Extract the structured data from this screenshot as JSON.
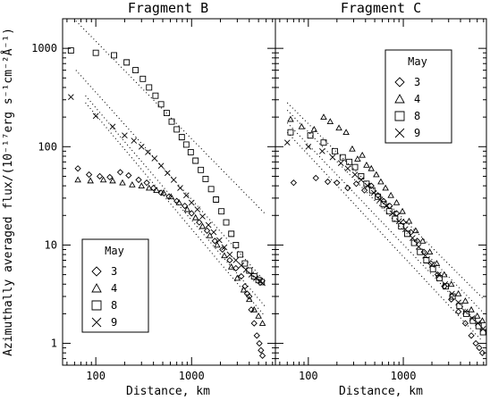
{
  "chart_data": {
    "type": "scatter",
    "ylabel": "Azimuthally averaged flux/(10⁻¹⁷erg s⁻¹cm⁻²Å⁻¹)",
    "xlabel": "Distance, km",
    "x_scale": "log",
    "y_scale": "log",
    "xlim": [
      45,
      7500
    ],
    "ylim": [
      0.6,
      2000
    ],
    "x_ticks": [
      {
        "value": 100,
        "label": "100"
      },
      {
        "value": 1000,
        "label": "1000"
      }
    ],
    "y_ticks": [
      {
        "value": 1,
        "label": "1"
      },
      {
        "value": 10,
        "label": "10"
      },
      {
        "value": 100,
        "label": "100"
      },
      {
        "value": 1000,
        "label": "1000"
      }
    ],
    "legend_title": "May",
    "series_markers": {
      "3": "diamond",
      "4": "triangle",
      "8": "square",
      "9": "cross"
    },
    "panels": [
      {
        "title": "Fragment B",
        "legend_position": "bottom-left",
        "series": [
          {
            "name": "3",
            "points": [
              [
                65,
                60
              ],
              [
                85,
                52
              ],
              [
                110,
                50
              ],
              [
                140,
                49
              ],
              [
                180,
                55
              ],
              [
                220,
                51
              ],
              [
                280,
                46
              ],
              [
                340,
                43
              ],
              [
                400,
                38
              ],
              [
                480,
                34
              ],
              [
                580,
                31
              ],
              [
                700,
                28
              ],
              [
                850,
                25
              ],
              [
                1000,
                21
              ],
              [
                1200,
                17
              ],
              [
                1450,
                14
              ],
              [
                1750,
                11
              ],
              [
                2100,
                9
              ],
              [
                2500,
                7
              ],
              [
                2900,
                5.8
              ],
              [
                3300,
                4.8
              ],
              [
                3600,
                3.8
              ],
              [
                3800,
                3.2
              ],
              [
                4000,
                3.0
              ],
              [
                4200,
                2.2
              ],
              [
                4500,
                1.6
              ],
              [
                4800,
                1.2
              ],
              [
                5100,
                1.0
              ],
              [
                5300,
                0.85
              ],
              [
                5500,
                0.75
              ]
            ]
          },
          {
            "name": "4",
            "points": [
              [
                65,
                46
              ],
              [
                88,
                45
              ],
              [
                120,
                46
              ],
              [
                150,
                45
              ],
              [
                190,
                43
              ],
              [
                240,
                41
              ],
              [
                300,
                40
              ],
              [
                360,
                38
              ],
              [
                430,
                36
              ],
              [
                510,
                34
              ],
              [
                610,
                31
              ],
              [
                740,
                27
              ],
              [
                900,
                23
              ],
              [
                1100,
                19
              ],
              [
                1300,
                15.5
              ],
              [
                1550,
                12.5
              ],
              [
                1850,
                10
              ],
              [
                2200,
                7.8
              ],
              [
                2600,
                6
              ],
              [
                3000,
                4.6
              ],
              [
                3500,
                3.5
              ],
              [
                4000,
                2.8
              ],
              [
                4500,
                2.2
              ],
              [
                5000,
                1.9
              ],
              [
                5500,
                1.6
              ]
            ]
          },
          {
            "name": "8",
            "points": [
              [
                55,
                950
              ],
              [
                100,
                900
              ],
              [
                155,
                850
              ],
              [
                210,
                720
              ],
              [
                260,
                600
              ],
              [
                310,
                490
              ],
              [
                360,
                400
              ],
              [
                420,
                330
              ],
              [
                480,
                270
              ],
              [
                550,
                220
              ],
              [
                620,
                180
              ],
              [
                700,
                150
              ],
              [
                790,
                125
              ],
              [
                880,
                105
              ],
              [
                980,
                88
              ],
              [
                1100,
                72
              ],
              [
                1250,
                58
              ],
              [
                1400,
                47
              ],
              [
                1600,
                37
              ],
              [
                1800,
                29
              ],
              [
                2050,
                22
              ],
              [
                2300,
                17
              ],
              [
                2600,
                13
              ],
              [
                2900,
                10
              ],
              [
                3200,
                8
              ],
              [
                3600,
                6.5
              ],
              [
                4000,
                5.5
              ],
              [
                4500,
                4.8
              ],
              [
                5000,
                4.4
              ],
              [
                5400,
                4.2
              ]
            ]
          },
          {
            "name": "9",
            "points": [
              [
                55,
                320
              ],
              [
                100,
                205
              ],
              [
                150,
                160
              ],
              [
                200,
                130
              ],
              [
                250,
                115
              ],
              [
                300,
                100
              ],
              [
                350,
                88
              ],
              [
                410,
                76
              ],
              [
                480,
                64
              ],
              [
                560,
                54
              ],
              [
                650,
                46
              ],
              [
                760,
                38
              ],
              [
                880,
                32
              ],
              [
                1000,
                27
              ],
              [
                1150,
                23
              ],
              [
                1300,
                19.5
              ],
              [
                1500,
                16
              ],
              [
                1700,
                13.5
              ],
              [
                1950,
                11.2
              ],
              [
                2200,
                9.5
              ],
              [
                2500,
                8
              ],
              [
                2900,
                7
              ],
              [
                3300,
                6.2
              ],
              [
                3700,
                5.6
              ],
              [
                4200,
                5
              ],
              [
                4700,
                4.6
              ],
              [
                5200,
                4.3
              ],
              [
                5500,
                4.1
              ]
            ]
          }
        ],
        "fit_lines": [
          {
            "x": [
              62,
              5800
            ],
            "y": [
              1900,
              21
            ]
          },
          {
            "x": [
              62,
              5800
            ],
            "y": [
              600,
              4.3
            ]
          },
          {
            "x": [
              78,
              5800
            ],
            "y": [
              330,
              2.4
            ]
          },
          {
            "x": [
              78,
              5800
            ],
            "y": [
              280,
              1.9
            ]
          }
        ]
      },
      {
        "title": "Fragment C",
        "legend_position": "top-right",
        "series": [
          {
            "name": "3",
            "points": [
              [
                70,
                43
              ],
              [
                120,
                48
              ],
              [
                160,
                44
              ],
              [
                200,
                43
              ],
              [
                260,
                38
              ],
              [
                320,
                42
              ],
              [
                390,
                36
              ],
              [
                460,
                40
              ],
              [
                540,
                32
              ],
              [
                620,
                28
              ],
              [
                720,
                25
              ],
              [
                850,
                21
              ],
              [
                1000,
                17
              ],
              [
                1200,
                13.5
              ],
              [
                1400,
                11
              ],
              [
                1650,
                8.5
              ],
              [
                1950,
                6.5
              ],
              [
                2300,
                5
              ],
              [
                2700,
                3.8
              ],
              [
                3200,
                2.8
              ],
              [
                3800,
                2.1
              ],
              [
                4500,
                1.6
              ],
              [
                5200,
                1.2
              ],
              [
                5800,
                1.0
              ],
              [
                6300,
                0.9
              ],
              [
                6800,
                0.8
              ]
            ]
          },
          {
            "name": "4",
            "points": [
              [
                65,
                190
              ],
              [
                85,
                160
              ],
              [
                115,
                150
              ],
              [
                145,
                200
              ],
              [
                170,
                180
              ],
              [
                210,
                155
              ],
              [
                250,
                140
              ],
              [
                290,
                95
              ],
              [
                330,
                75
              ],
              [
                370,
                82
              ],
              [
                410,
                65
              ],
              [
                460,
                60
              ],
              [
                520,
                52
              ],
              [
                580,
                44
              ],
              [
                650,
                38
              ],
              [
                740,
                32
              ],
              [
                850,
                27
              ],
              [
                980,
                22
              ],
              [
                1150,
                17.5
              ],
              [
                1350,
                14
              ],
              [
                1600,
                11
              ],
              [
                1900,
                8.5
              ],
              [
                2250,
                6.5
              ],
              [
                2700,
                5
              ],
              [
                3200,
                4
              ],
              [
                3800,
                3.2
              ],
              [
                4500,
                2.7
              ],
              [
                5200,
                2.2
              ],
              [
                6000,
                1.9
              ],
              [
                6800,
                1.7
              ]
            ]
          },
          {
            "name": "8",
            "points": [
              [
                65,
                140
              ],
              [
                105,
                130
              ],
              [
                145,
                110
              ],
              [
                190,
                90
              ],
              [
                230,
                78
              ],
              [
                270,
                70
              ],
              [
                310,
                62
              ],
              [
                360,
                50
              ],
              [
                410,
                42
              ],
              [
                470,
                36
              ],
              [
                540,
                31
              ],
              [
                620,
                26
              ],
              [
                710,
                22
              ],
              [
                820,
                18.5
              ],
              [
                950,
                15.5
              ],
              [
                1100,
                13
              ],
              [
                1300,
                10.5
              ],
              [
                1500,
                8.5
              ],
              [
                1750,
                7
              ],
              [
                2050,
                5.7
              ],
              [
                2400,
                4.6
              ],
              [
                2800,
                3.8
              ],
              [
                3300,
                3
              ],
              [
                3900,
                2.4
              ],
              [
                4600,
                2
              ],
              [
                5400,
                1.7
              ],
              [
                6200,
                1.5
              ],
              [
                6900,
                1.3
              ]
            ]
          },
          {
            "name": "9",
            "points": [
              [
                60,
                110
              ],
              [
                100,
                100
              ],
              [
                140,
                90
              ],
              [
                180,
                78
              ],
              [
                220,
                68
              ],
              [
                260,
                60
              ],
              [
                310,
                52
              ],
              [
                360,
                46
              ],
              [
                420,
                40
              ],
              [
                490,
                34
              ],
              [
                570,
                29
              ],
              [
                660,
                25
              ],
              [
                770,
                21
              ],
              [
                900,
                17.5
              ],
              [
                1050,
                14.5
              ],
              [
                1250,
                11.8
              ],
              [
                1450,
                9.6
              ],
              [
                1700,
                7.8
              ],
              [
                2000,
                6.3
              ],
              [
                2350,
                5
              ],
              [
                2750,
                4
              ],
              [
                3250,
                3.2
              ],
              [
                3800,
                2.6
              ],
              [
                4500,
                2.1
              ],
              [
                5300,
                1.8
              ],
              [
                6100,
                1.6
              ],
              [
                6900,
                1.4
              ]
            ]
          }
        ],
        "fit_lines": [
          {
            "x": [
              60,
              6800
            ],
            "y": [
              280,
              2.9
            ]
          },
          {
            "x": [
              60,
              6800
            ],
            "y": [
              235,
              2.1
            ]
          },
          {
            "x": [
              60,
              6800
            ],
            "y": [
              175,
              1.45
            ]
          },
          {
            "x": [
              60,
              6800
            ],
            "y": [
              140,
              1.05
            ]
          }
        ]
      }
    ]
  }
}
